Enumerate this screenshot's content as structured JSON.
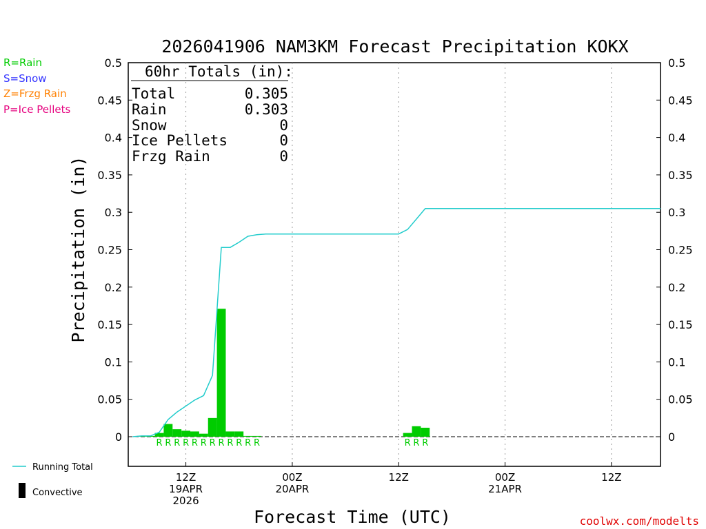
{
  "colors": {
    "rain": "#00cc00",
    "snow": "#3333ff",
    "frzg_rain": "#ff8000",
    "ice_pellets": "#e6007e",
    "running_total": "#22cccc",
    "credit": "#e00000"
  },
  "precip_type_legend": [
    {
      "label": "R=Rain",
      "color_key": "rain"
    },
    {
      "label": "S=Snow",
      "color_key": "snow"
    },
    {
      "label": "Z=Frzg Rain",
      "color_key": "frzg_rain"
    },
    {
      "label": "P=Ice Pellets",
      "color_key": "ice_pellets"
    }
  ],
  "totals_box": {
    "heading": "60hr Totals (in):",
    "rows": [
      {
        "label": "Total",
        "value": "0.305"
      },
      {
        "label": "Rain",
        "value": "0.303"
      },
      {
        "label": "Snow",
        "value": "0"
      },
      {
        "label": "Ice Pellets",
        "value": "0"
      },
      {
        "label": "Frzg Rain",
        "value": "0"
      }
    ]
  },
  "bottom_legend": {
    "running_total": "Running Total",
    "convective": "Convective"
  },
  "credit": "coolwx.com/modelts",
  "chart_data": {
    "type": "bar",
    "title": "2026041906 NAM3KM Forecast Precipitation KOKX",
    "xlabel": "Forecast Time (UTC)",
    "ylabel": "Precipitation (in)",
    "ylim": [
      -0.04,
      0.5
    ],
    "xlim": [
      0,
      60
    ],
    "yticks": [
      0,
      0.05,
      0.1,
      0.15,
      0.2,
      0.25,
      0.3,
      0.35,
      0.4,
      0.45,
      0.5
    ],
    "ytick_labels": [
      "0",
      "0.05",
      "0.1",
      "0.15",
      "0.2",
      "0.25",
      "0.3",
      "0.35",
      "0.4",
      "0.45",
      "0.5"
    ],
    "xticks": [
      {
        "hour": 6,
        "lines": [
          "12Z",
          "19APR",
          "2026"
        ]
      },
      {
        "hour": 18,
        "lines": [
          "00Z",
          "20APR"
        ]
      },
      {
        "hour": 30,
        "lines": [
          "12Z"
        ]
      },
      {
        "hour": 42,
        "lines": [
          "00Z",
          "21APR"
        ]
      },
      {
        "hour": 54,
        "lines": [
          "12Z"
        ]
      }
    ],
    "grid": "vertical dotted at ticks",
    "bar_width_hours": 1,
    "hourly_precip": {
      "hours": [
        1,
        2,
        3,
        4,
        5,
        6,
        7,
        8,
        9,
        10,
        11,
        12,
        13,
        14,
        15,
        16,
        31,
        32,
        33
      ],
      "values": [
        0.001,
        0.001,
        0.005,
        0.017,
        0.01,
        0.008,
        0.007,
        0.004,
        0.025,
        0.171,
        0.007,
        0.007,
        0.001,
        0.001,
        0.0,
        0.0,
        0.005,
        0.014,
        0.012
      ],
      "type_labels": [
        "",
        "",
        "R",
        "R",
        "R",
        "R",
        "R",
        "R",
        "R",
        "R",
        "R",
        "R",
        "R",
        "R",
        "",
        "",
        "R",
        "R",
        "R"
      ]
    },
    "running_total": {
      "hours": [
        0,
        1,
        2,
        3,
        4,
        5,
        6,
        7,
        8,
        9,
        10,
        11,
        12,
        13,
        14,
        15,
        16,
        17,
        30,
        31,
        32,
        33,
        34,
        60
      ],
      "values": [
        0.0,
        0.001,
        0.001,
        0.006,
        0.023,
        0.033,
        0.041,
        0.049,
        0.055,
        0.082,
        0.253,
        0.253,
        0.26,
        0.268,
        0.27,
        0.271,
        0.271,
        0.271,
        0.271,
        0.277,
        0.291,
        0.305,
        0.305,
        0.305
      ]
    }
  }
}
